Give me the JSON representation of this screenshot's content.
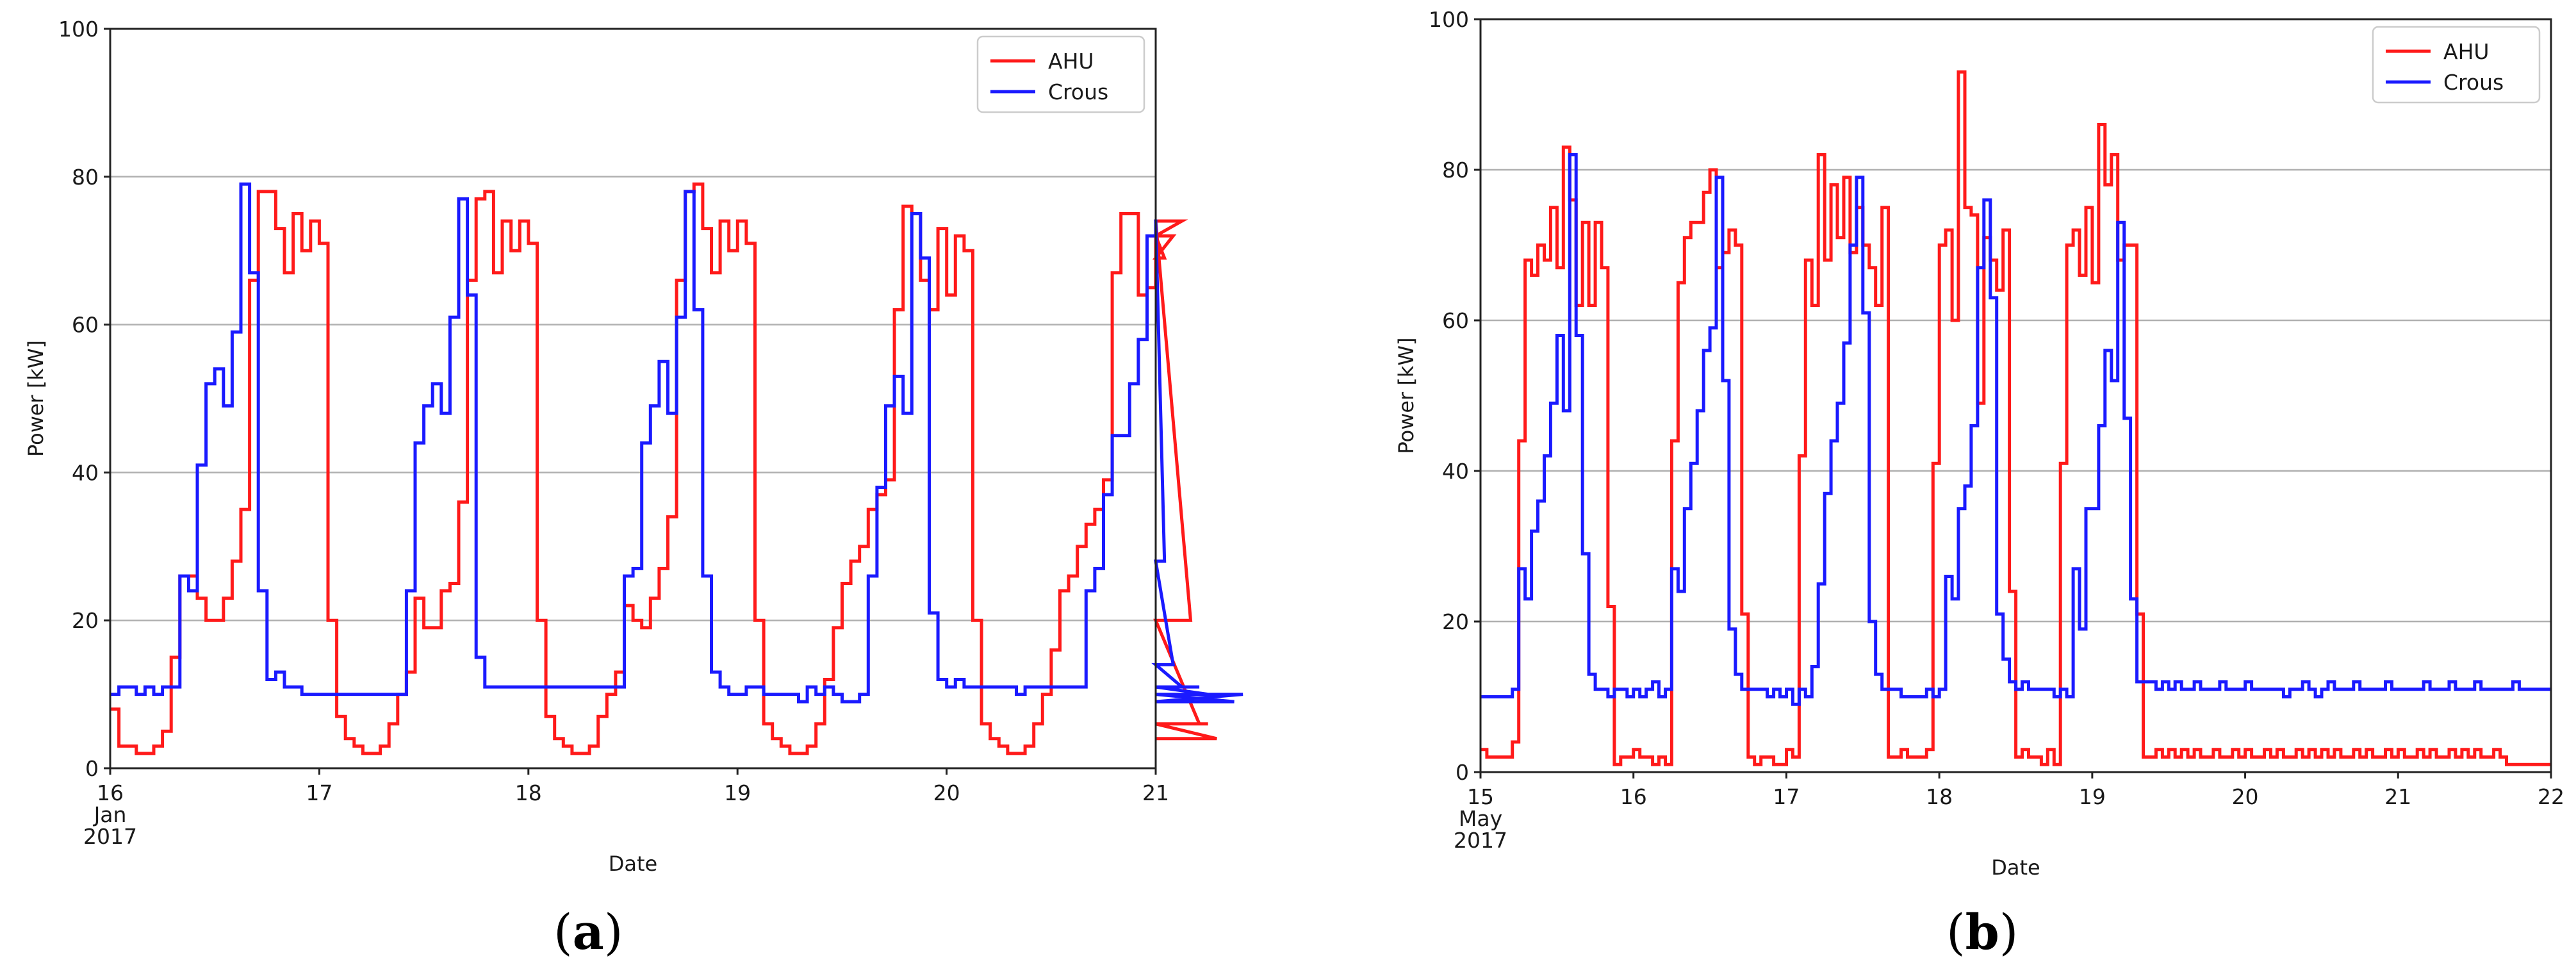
{
  "colors": {
    "ahu": "#ff1a1a",
    "crous": "#1a1aff",
    "grid": "#b0b0b0",
    "axis": "#222222"
  },
  "chart_data": [
    {
      "type": "line",
      "caption_letter": "a",
      "xlabel": "Date",
      "ylabel": "Power [kW]",
      "xlim": [
        16,
        21
      ],
      "ylim": [
        0,
        100
      ],
      "yticks": [
        0,
        20,
        40,
        60,
        80,
        100
      ],
      "xticks": [
        {
          "value": 16,
          "lines": [
            "16",
            "Jan",
            "2017"
          ]
        },
        {
          "value": 17,
          "lines": [
            "17"
          ]
        },
        {
          "value": 18,
          "lines": [
            "18"
          ]
        },
        {
          "value": 19,
          "lines": [
            "19"
          ]
        },
        {
          "value": 20,
          "lines": [
            "20"
          ]
        },
        {
          "value": 21,
          "lines": [
            "21"
          ]
        }
      ],
      "grid": "y",
      "legend": "top-right",
      "series": [
        {
          "name": "AHU",
          "step": 0.04167,
          "values": [
            8,
            3,
            3,
            2,
            2,
            3,
            5,
            15,
            26,
            26,
            23,
            20,
            20,
            23,
            28,
            35,
            66,
            78,
            78,
            73,
            67,
            75,
            70,
            74,
            71,
            20,
            7,
            4,
            3,
            2,
            2,
            3,
            6,
            10,
            13,
            23,
            19,
            19,
            24,
            25,
            36,
            66,
            77,
            78,
            67,
            74,
            70,
            74,
            71,
            20,
            7,
            4,
            3,
            2,
            2,
            3,
            7,
            10,
            13,
            22,
            20,
            19,
            23,
            27,
            34,
            66,
            78,
            79,
            73,
            67,
            74,
            70,
            74,
            71,
            20,
            6,
            4,
            3,
            2,
            2,
            3,
            6,
            12,
            19,
            25,
            28,
            30,
            35,
            37,
            39,
            62,
            76,
            75,
            66,
            62,
            73,
            64,
            72,
            70,
            20,
            6,
            4,
            3,
            2,
            2,
            3,
            6,
            10,
            16,
            24,
            26,
            30,
            33,
            35,
            39,
            67,
            75,
            75,
            64,
            65,
            72,
            69,
            72,
            74,
            20,
            6,
            6,
            4
          ]
        },
        {
          "name": "Crous",
          "step": 0.04167,
          "values": [
            10,
            11,
            11,
            10,
            11,
            10,
            11,
            11,
            26,
            24,
            41,
            52,
            54,
            49,
            59,
            79,
            67,
            24,
            12,
            13,
            11,
            11,
            10,
            10,
            10,
            10,
            10,
            10,
            10,
            10,
            10,
            10,
            10,
            10,
            24,
            44,
            49,
            52,
            48,
            61,
            77,
            64,
            15,
            11,
            11,
            11,
            11,
            11,
            11,
            11,
            11,
            11,
            11,
            11,
            11,
            11,
            11,
            11,
            11,
            26,
            27,
            44,
            49,
            55,
            48,
            61,
            78,
            62,
            26,
            13,
            11,
            10,
            10,
            11,
            11,
            10,
            10,
            10,
            10,
            9,
            11,
            10,
            11,
            10,
            9,
            9,
            10,
            26,
            38,
            49,
            53,
            48,
            75,
            69,
            21,
            12,
            11,
            12,
            11,
            11,
            11,
            11,
            11,
            11,
            10,
            11,
            11,
            11,
            11,
            11,
            11,
            11,
            24,
            27,
            37,
            45,
            45,
            52,
            58,
            72,
            74,
            28,
            14,
            11,
            11,
            11,
            10,
            10,
            10,
            9,
            10
          ]
        }
      ]
    },
    {
      "type": "line",
      "caption_letter": "b",
      "xlabel": "Date",
      "ylabel": "Power [kW]",
      "xlim": [
        15,
        22
      ],
      "ylim": [
        0,
        100
      ],
      "yticks": [
        0,
        20,
        40,
        60,
        80,
        100
      ],
      "xticks": [
        {
          "value": 15,
          "lines": [
            "15",
            "May",
            "2017"
          ]
        },
        {
          "value": 16,
          "lines": [
            "16"
          ]
        },
        {
          "value": 17,
          "lines": [
            "17"
          ]
        },
        {
          "value": 18,
          "lines": [
            "18"
          ]
        },
        {
          "value": 19,
          "lines": [
            "19"
          ]
        },
        {
          "value": 20,
          "lines": [
            "20"
          ]
        },
        {
          "value": 21,
          "lines": [
            "21"
          ]
        },
        {
          "value": 22,
          "lines": [
            "22"
          ]
        }
      ],
      "grid": "y",
      "legend": "top-right",
      "series": [
        {
          "name": "AHU",
          "step": 0.04167,
          "values": [
            3,
            2,
            2,
            2,
            2,
            4,
            44,
            68,
            66,
            70,
            68,
            75,
            67,
            83,
            76,
            62,
            73,
            62,
            73,
            67,
            22,
            1,
            2,
            2,
            3,
            2,
            2,
            1,
            2,
            1,
            44,
            65,
            71,
            73,
            73,
            77,
            80,
            67,
            69,
            72,
            70,
            21,
            2,
            1,
            2,
            2,
            1,
            1,
            3,
            2,
            42,
            68,
            62,
            82,
            68,
            78,
            71,
            79,
            69,
            75,
            70,
            67,
            62,
            75,
            2,
            2,
            3,
            2,
            2,
            2,
            3,
            41,
            70,
            72,
            60,
            93,
            75,
            74,
            49,
            71,
            68,
            64,
            72,
            24,
            2,
            3,
            2,
            2,
            1,
            3,
            1,
            41,
            70,
            72,
            66,
            75,
            65,
            86,
            78,
            82,
            68,
            70,
            70,
            21,
            2,
            2,
            3,
            2,
            3,
            2,
            3,
            2,
            3,
            2,
            2,
            3,
            2,
            2,
            3,
            2,
            3,
            2,
            2,
            3,
            2,
            3,
            2,
            2,
            3,
            2,
            3,
            2,
            3,
            2,
            3,
            2,
            2,
            3,
            2,
            3,
            2,
            2,
            3,
            2,
            3,
            2,
            2,
            3,
            2,
            3,
            2,
            2,
            3,
            2,
            3,
            2,
            3,
            2,
            2,
            3,
            2,
            1
          ]
        },
        {
          "name": "Crous",
          "step": 0.04167,
          "values": [
            10,
            10,
            10,
            10,
            10,
            11,
            27,
            23,
            32,
            36,
            42,
            49,
            58,
            48,
            82,
            58,
            29,
            13,
            11,
            11,
            10,
            11,
            11,
            10,
            11,
            10,
            11,
            12,
            10,
            11,
            27,
            24,
            35,
            41,
            48,
            56,
            59,
            79,
            52,
            19,
            13,
            11,
            11,
            11,
            11,
            10,
            11,
            10,
            11,
            9,
            11,
            10,
            14,
            25,
            37,
            44,
            49,
            57,
            70,
            79,
            61,
            20,
            13,
            11,
            11,
            11,
            10,
            10,
            10,
            10,
            11,
            10,
            11,
            26,
            23,
            35,
            38,
            46,
            67,
            76,
            63,
            21,
            15,
            12,
            11,
            12,
            11,
            11,
            11,
            11,
            10,
            11,
            10,
            27,
            19,
            35,
            35,
            46,
            56,
            52,
            73,
            47,
            23,
            12,
            12,
            12,
            11,
            12,
            11,
            12,
            11,
            11,
            12,
            11,
            11,
            11,
            12,
            11,
            11,
            11,
            12,
            11,
            11,
            11,
            11,
            11,
            10,
            11,
            11,
            12,
            11,
            10,
            11,
            12,
            11,
            11,
            11,
            12,
            11,
            11,
            11,
            11,
            12,
            11,
            11,
            11,
            11,
            11,
            12,
            11,
            11,
            11,
            12,
            11,
            11,
            11,
            12,
            11,
            11,
            11,
            11,
            11,
            12,
            11
          ]
        }
      ]
    }
  ]
}
